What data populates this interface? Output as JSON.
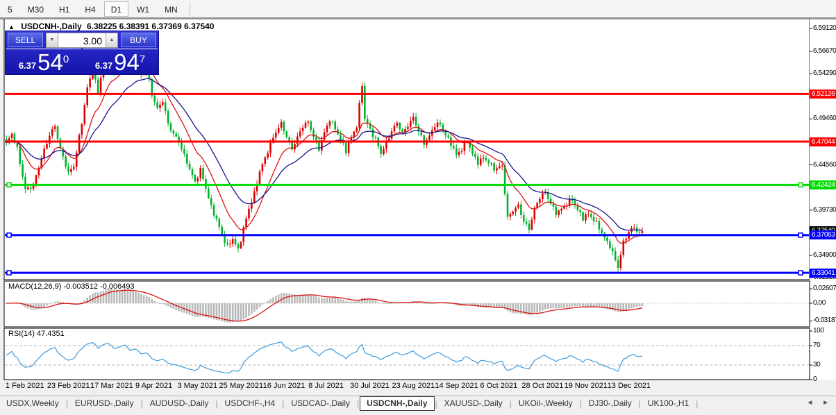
{
  "toolbar": {
    "timeframes": [
      "5",
      "M30",
      "H1",
      "H4",
      "D1",
      "W1",
      "MN"
    ],
    "active": "D1"
  },
  "window": {
    "title_marker": "▲",
    "symbol_title": "USDCNH-,Daily",
    "ohlc": "6.38225 6.38391 6.37369 6.37540"
  },
  "trade_panel": {
    "sell_label": "SELL",
    "buy_label": "BUY",
    "volume": "3.00",
    "volume_down_icon": "▼",
    "volume_up_icon": "▲",
    "sell_price": {
      "prefix": "6.37",
      "big": "54",
      "sup": "0"
    },
    "buy_price": {
      "prefix": "6.37",
      "big": "94",
      "sup": "7"
    }
  },
  "chart_data": {
    "type": "candlestick",
    "symbol": "USDCNH-",
    "timeframe": "Daily",
    "ohlc_current": {
      "open": "6.38225",
      "high": "6.38391",
      "low": "6.37369",
      "close": "6.37540"
    },
    "up_color": "#DE0000",
    "down_color": "#00B22C",
    "ma_fast_color": "#DD1111",
    "ma_slow_color": "#15158E",
    "x_ticks": [
      "1 Feb 2021",
      "23 Feb 2021",
      "17 Mar 2021",
      "9 Apr 2021",
      "3 May 2021",
      "25 May 2021",
      "16 Jun 2021",
      "8 Jul 2021",
      "30 Jul 2021",
      "23 Aug 2021",
      "14 Sep 2021",
      "6 Oct 2021",
      "28 Oct 2021",
      "19 Nov 2021",
      "13 Dec 2021"
    ],
    "bars_per_tick": 16,
    "first_tick_bar": 5,
    "total_bars": 237,
    "price_axis": {
      "ticks": [
        "6.59120",
        "6.56670",
        "6.54290",
        "6.49460",
        "6.44560",
        "6.39730",
        "6.34900",
        "6.32520"
      ]
    },
    "hlines": [
      {
        "label": "6.52126",
        "color": "#FF0000",
        "handles": false
      },
      {
        "label": "6.47044",
        "color": "#FF0000",
        "handles": false
      },
      {
        "label": "6.42424",
        "color": "#00DC00",
        "handles": true
      },
      {
        "label": "6.37063",
        "color": "#0000FF",
        "handles": true
      },
      {
        "label": "6.33041",
        "color": "#0000FF",
        "handles": true
      }
    ],
    "current_price_label": {
      "label": "6.37540",
      "color": "#000000"
    },
    "close_keypoints": [
      [
        0,
        6.468
      ],
      [
        2,
        6.478
      ],
      [
        4,
        6.462
      ],
      [
        7,
        6.42
      ],
      [
        10,
        6.424
      ],
      [
        13,
        6.452
      ],
      [
        16,
        6.478
      ],
      [
        18,
        6.488
      ],
      [
        20,
        6.462
      ],
      [
        23,
        6.436
      ],
      [
        25,
        6.444
      ],
      [
        28,
        6.492
      ],
      [
        30,
        6.528
      ],
      [
        32,
        6.545
      ],
      [
        34,
        6.522
      ],
      [
        36,
        6.556
      ],
      [
        38,
        6.568
      ],
      [
        40,
        6.545
      ],
      [
        42,
        6.558
      ],
      [
        44,
        6.575
      ],
      [
        46,
        6.552
      ],
      [
        48,
        6.566
      ],
      [
        50,
        6.542
      ],
      [
        52,
        6.548
      ],
      [
        54,
        6.52
      ],
      [
        56,
        6.505
      ],
      [
        58,
        6.515
      ],
      [
        60,
        6.49
      ],
      [
        62,
        6.478
      ],
      [
        64,
        6.47
      ],
      [
        66,
        6.455
      ],
      [
        68,
        6.442
      ],
      [
        70,
        6.428
      ],
      [
        72,
        6.44
      ],
      [
        74,
        6.42
      ],
      [
        76,
        6.4
      ],
      [
        78,
        6.388
      ],
      [
        80,
        6.372
      ],
      [
        82,
        6.358
      ],
      [
        84,
        6.366
      ],
      [
        86,
        6.354
      ],
      [
        88,
        6.378
      ],
      [
        90,
        6.4
      ],
      [
        92,
        6.415
      ],
      [
        94,
        6.438
      ],
      [
        96,
        6.452
      ],
      [
        98,
        6.468
      ],
      [
        100,
        6.482
      ],
      [
        102,
        6.49
      ],
      [
        104,
        6.475
      ],
      [
        106,
        6.462
      ],
      [
        108,
        6.475
      ],
      [
        110,
        6.488
      ],
      [
        112,
        6.492
      ],
      [
        114,
        6.475
      ],
      [
        116,
        6.462
      ],
      [
        118,
        6.48
      ],
      [
        120,
        6.495
      ],
      [
        122,
        6.485
      ],
      [
        124,
        6.472
      ],
      [
        126,
        6.46
      ],
      [
        128,
        6.475
      ],
      [
        130,
        6.488
      ],
      [
        132,
        6.532
      ],
      [
        133,
        6.495
      ],
      [
        135,
        6.482
      ],
      [
        137,
        6.472
      ],
      [
        139,
        6.458
      ],
      [
        141,
        6.47
      ],
      [
        143,
        6.482
      ],
      [
        145,
        6.49
      ],
      [
        147,
        6.478
      ],
      [
        149,
        6.488
      ],
      [
        151,
        6.497
      ],
      [
        153,
        6.482
      ],
      [
        155,
        6.468
      ],
      [
        157,
        6.475
      ],
      [
        159,
        6.488
      ],
      [
        161,
        6.49
      ],
      [
        163,
        6.478
      ],
      [
        165,
        6.468
      ],
      [
        167,
        6.455
      ],
      [
        169,
        6.462
      ],
      [
        171,
        6.472
      ],
      [
        173,
        6.458
      ],
      [
        175,
        6.448
      ],
      [
        177,
        6.452
      ],
      [
        179,
        6.448
      ],
      [
        181,
        6.442
      ],
      [
        184,
        6.445
      ],
      [
        186,
        6.388
      ],
      [
        188,
        6.396
      ],
      [
        190,
        6.402
      ],
      [
        192,
        6.386
      ],
      [
        194,
        6.378
      ],
      [
        196,
        6.398
      ],
      [
        198,
        6.41
      ],
      [
        200,
        6.416
      ],
      [
        202,
        6.405
      ],
      [
        204,
        6.395
      ],
      [
        206,
        6.398
      ],
      [
        208,
        6.403
      ],
      [
        210,
        6.408
      ],
      [
        212,
        6.398
      ],
      [
        214,
        6.39
      ],
      [
        216,
        6.393
      ],
      [
        218,
        6.386
      ],
      [
        220,
        6.378
      ],
      [
        222,
        6.368
      ],
      [
        224,
        6.36
      ],
      [
        226,
        6.344
      ],
      [
        227,
        6.336
      ],
      [
        229,
        6.362
      ],
      [
        231,
        6.374
      ],
      [
        233,
        6.38
      ],
      [
        235,
        6.372
      ],
      [
        236,
        6.375
      ]
    ],
    "moving_averages": [
      {
        "type": "ema",
        "period": 12,
        "color": "#DD1111"
      },
      {
        "type": "ema",
        "period": 26,
        "color": "#15158E"
      }
    ],
    "macd": {
      "label": "MACD(12,26,9) -0.003512 -0.006493",
      "value": -0.003512,
      "signal": -0.006493,
      "params": [
        12,
        26,
        9
      ],
      "axis_ticks": [
        "0.02607",
        "0.00",
        "-0.03187"
      ],
      "hist_color": "#B8B8B8",
      "signal_color": "#DD1111"
    },
    "rsi": {
      "label": "RSI(14) 47.4351",
      "value": 47.4351,
      "period": 14,
      "levels": [
        70,
        30
      ],
      "axis_ticks": [
        "100",
        "70",
        "30",
        "0"
      ],
      "color": "#3E9ADB"
    }
  },
  "bottom_tabs": {
    "separator": "|",
    "active_index": 5,
    "tabs": [
      "USDX,Weekly",
      "EURUSD-,Daily",
      "AUDUSD-,Daily",
      "USDCHF-,H4",
      "USDCAD-,Daily",
      "USDCNH-,Daily",
      "XAUUSD-,Daily",
      "UKOil-,Weekly",
      "DJ30-,Daily",
      "UK100-,H1"
    ],
    "scroll_left_icon": "◄",
    "scroll_right_icon": "►"
  }
}
